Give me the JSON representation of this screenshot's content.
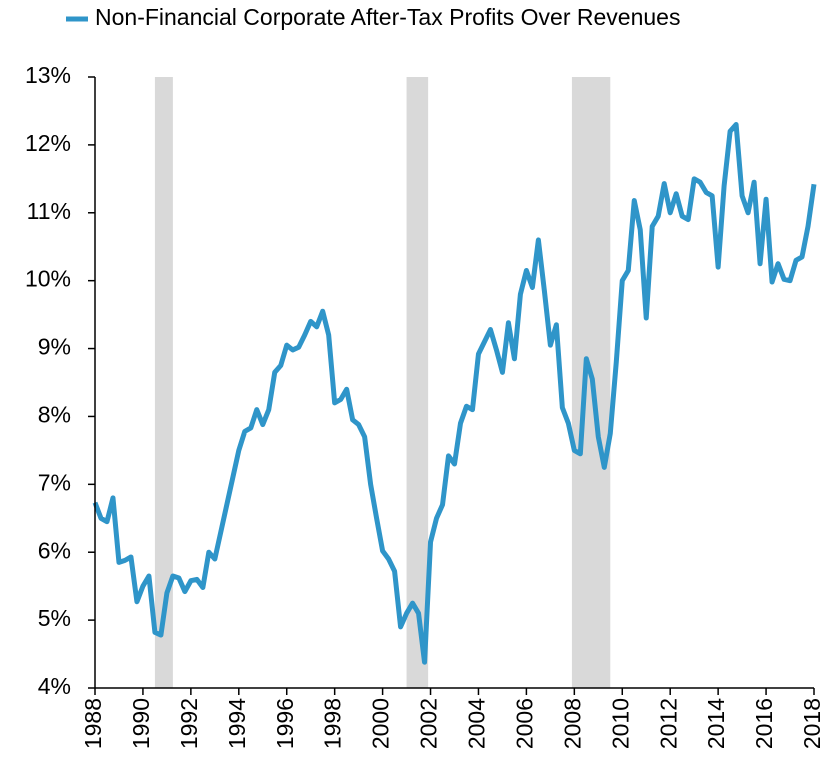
{
  "chart_data": {
    "type": "line",
    "x": [
      1988,
      1988.25,
      1988.5,
      1988.75,
      1989,
      1989.25,
      1989.5,
      1989.75,
      1990,
      1990.25,
      1990.5,
      1990.75,
      1991,
      1991.25,
      1991.5,
      1991.75,
      1992,
      1992.25,
      1992.5,
      1992.75,
      1993,
      1993.25,
      1993.5,
      1993.75,
      1994,
      1994.25,
      1994.5,
      1994.75,
      1995,
      1995.25,
      1995.5,
      1995.75,
      1996,
      1996.25,
      1996.5,
      1996.75,
      1997,
      1997.25,
      1997.5,
      1997.75,
      1998,
      1998.25,
      1998.5,
      1998.75,
      1999,
      1999.25,
      1999.5,
      1999.75,
      2000,
      2000.25,
      2000.5,
      2000.75,
      2001,
      2001.25,
      2001.5,
      2001.75,
      2002,
      2002.25,
      2002.5,
      2002.75,
      2003,
      2003.25,
      2003.5,
      2003.75,
      2004,
      2004.25,
      2004.5,
      2004.75,
      2005,
      2005.25,
      2005.5,
      2005.75,
      2006,
      2006.25,
      2006.5,
      2006.75,
      2007,
      2007.25,
      2007.5,
      2007.75,
      2008,
      2008.25,
      2008.5,
      2008.75,
      2009,
      2009.25,
      2009.5,
      2009.75,
      2010,
      2010.25,
      2010.5,
      2010.75,
      2011,
      2011.25,
      2011.5,
      2011.75,
      2012,
      2012.25,
      2012.5,
      2012.75,
      2013,
      2013.25,
      2013.5,
      2013.75,
      2014,
      2014.25,
      2014.5,
      2014.75,
      2015,
      2015.25,
      2015.5,
      2015.75,
      2016,
      2016.25,
      2016.5,
      2016.75,
      2017,
      2017.25,
      2017.5,
      2017.75,
      2018
    ],
    "series": [
      {
        "name": "Non-Financial Corporate After-Tax Profits Over Revenues",
        "color": "#2f95c9",
        "values": [
          6.73,
          6.5,
          6.45,
          6.8,
          5.85,
          5.88,
          5.93,
          5.27,
          5.5,
          5.65,
          4.82,
          4.78,
          5.4,
          5.65,
          5.62,
          5.42,
          5.58,
          5.6,
          5.48,
          6.0,
          5.9,
          6.3,
          6.7,
          7.1,
          7.5,
          7.78,
          7.83,
          8.1,
          7.88,
          8.1,
          8.65,
          8.75,
          9.05,
          8.98,
          9.02,
          9.2,
          9.4,
          9.32,
          9.55,
          9.2,
          8.2,
          8.25,
          8.4,
          7.95,
          7.88,
          7.7,
          7.0,
          6.5,
          6.02,
          5.9,
          5.72,
          4.9,
          5.1,
          5.25,
          5.1,
          4.38,
          6.15,
          6.5,
          6.7,
          7.42,
          7.3,
          7.9,
          8.15,
          8.1,
          8.92,
          9.1,
          9.28,
          8.98,
          8.65,
          9.38,
          8.85,
          9.8,
          10.15,
          9.9,
          10.6,
          9.85,
          9.05,
          9.35,
          8.13,
          7.9,
          7.5,
          7.45,
          8.85,
          8.55,
          7.7,
          7.25,
          7.75,
          8.8,
          10.0,
          10.15,
          11.18,
          10.75,
          9.45,
          10.8,
          10.95,
          11.43,
          11.0,
          11.28,
          10.95,
          10.9,
          11.5,
          11.45,
          11.3,
          11.25,
          10.2,
          11.4,
          12.2,
          12.3,
          11.25,
          11.0,
          11.45,
          10.25,
          11.2,
          9.98,
          10.25,
          10.02,
          10.0,
          10.3,
          10.35,
          10.8,
          11.42
        ]
      }
    ],
    "recessions": [
      [
        1990.5,
        1991.25
      ],
      [
        2001.0,
        2001.9
      ],
      [
        2007.9,
        2009.5
      ]
    ],
    "recession_color": "#d9d9d9",
    "xlim": [
      1988,
      2018
    ],
    "xticks": [
      1988,
      1990,
      1992,
      1994,
      1996,
      1998,
      2000,
      2002,
      2004,
      2006,
      2008,
      2010,
      2012,
      2014,
      2016,
      2018
    ],
    "ylim": [
      4,
      13
    ],
    "yticks": [
      {
        "value": 4,
        "label": "4%"
      },
      {
        "value": 5,
        "label": "5%"
      },
      {
        "value": 6,
        "label": "6%"
      },
      {
        "value": 7,
        "label": "7%"
      },
      {
        "value": 8,
        "label": "8%"
      },
      {
        "value": 9,
        "label": "9%"
      },
      {
        "value": 10,
        "label": "10%"
      },
      {
        "value": 11,
        "label": "11%"
      },
      {
        "value": 12,
        "label": "12%"
      },
      {
        "value": 13,
        "label": "13%"
      }
    ],
    "legend": "top-left"
  }
}
